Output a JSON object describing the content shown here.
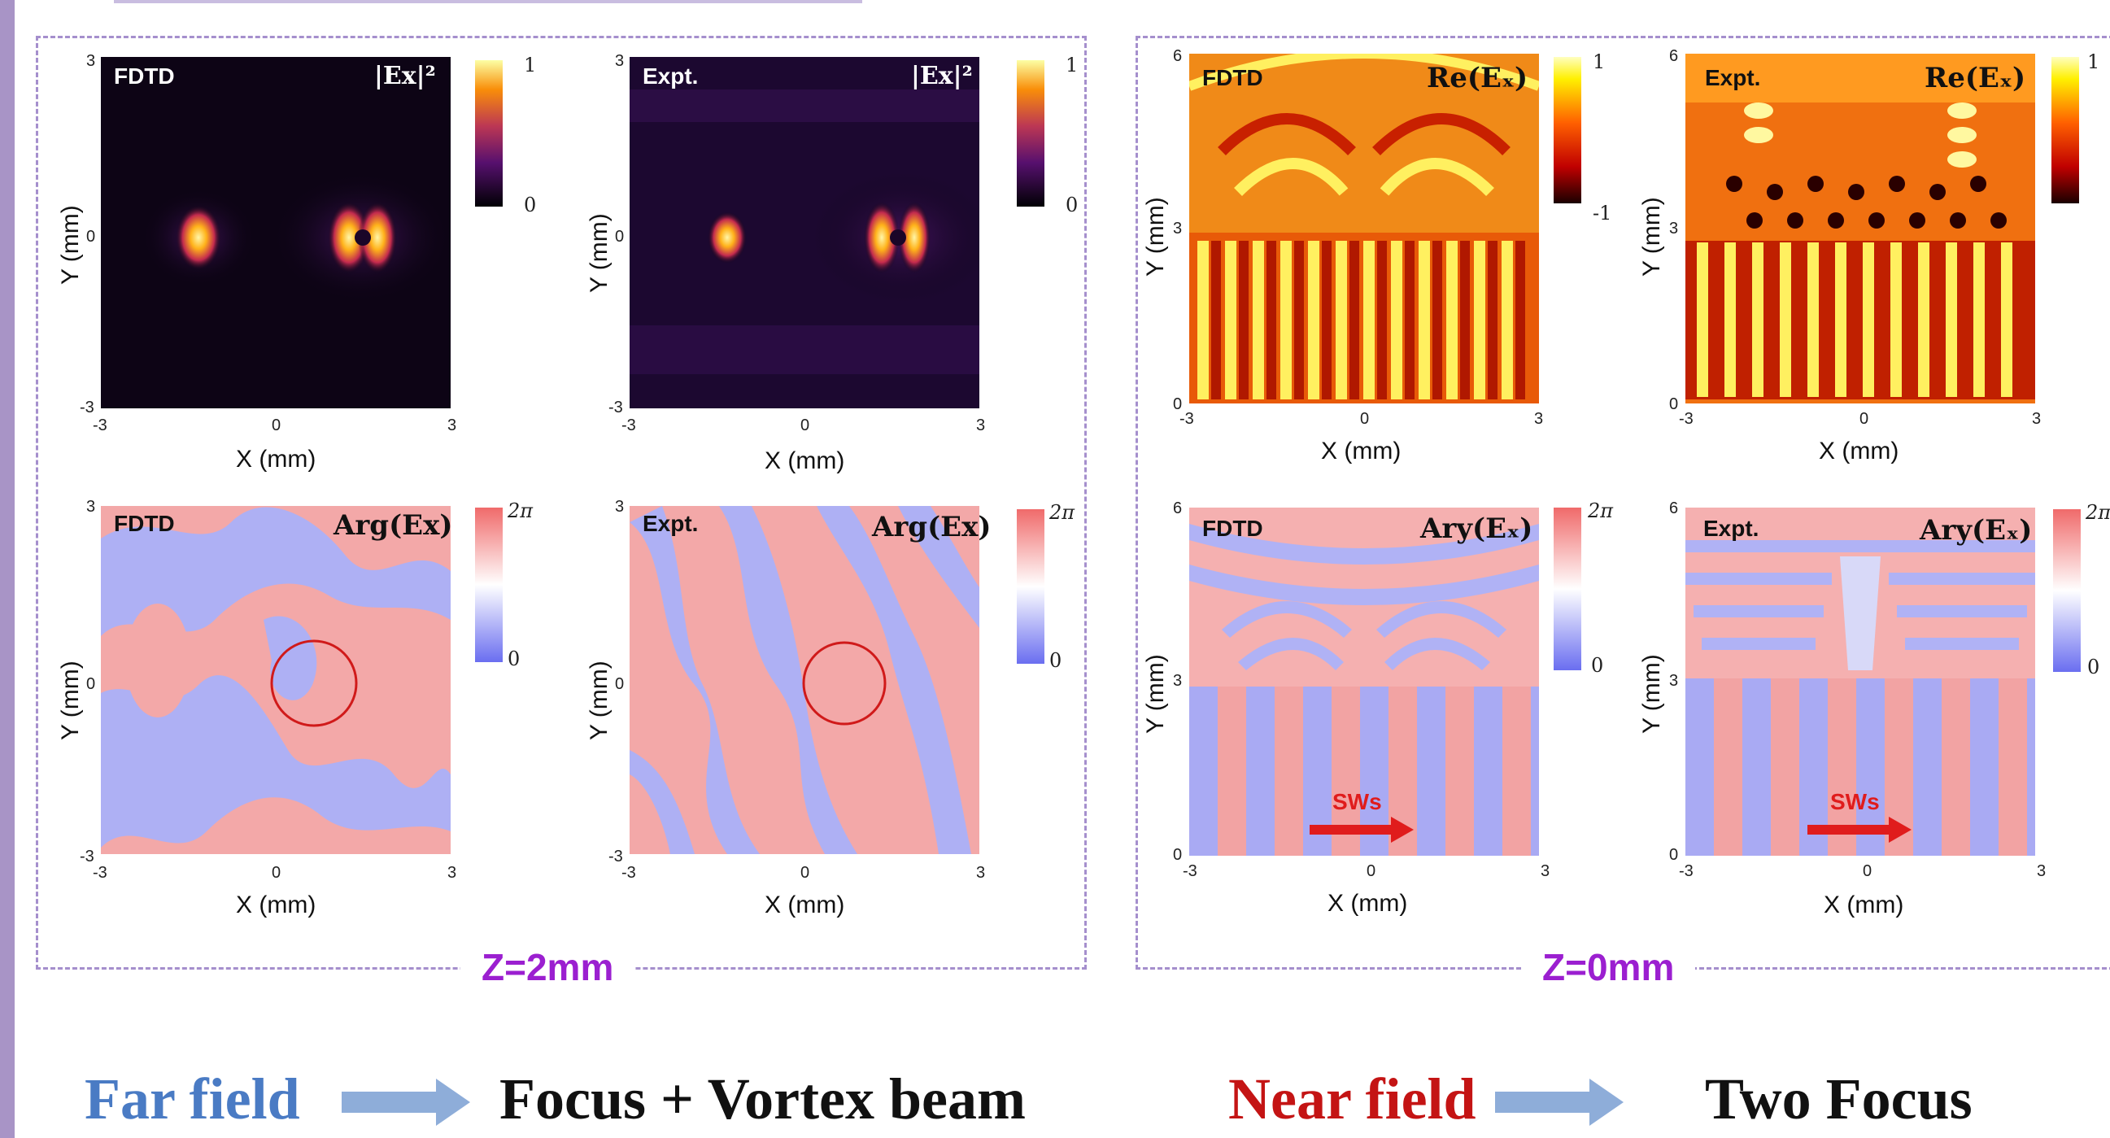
{
  "colors": {
    "far_field": "#4a7bc4",
    "near_field": "#c41414",
    "z_label": "#9b1fd0",
    "dash": "#a58fcd",
    "circle": "#d01a1a",
    "sws_arrow": "#e01c1c"
  },
  "panels": {
    "far_intensity_fdtd": {
      "source": "FDTD",
      "quantity": "|Ex|²",
      "cbar_max": "1",
      "cbar_min": "0",
      "ticks": [
        "-3",
        "0",
        "3"
      ],
      "xlabel": "X (mm)",
      "ylabel": "Y (mm)"
    },
    "far_intensity_expt": {
      "source": "Expt.",
      "quantity": "|Ex|²",
      "cbar_max": "1",
      "cbar_min": "0",
      "ticks": [
        "-3",
        "0",
        "3"
      ],
      "xlabel": "X (mm)",
      "ylabel": "Y (mm)"
    },
    "far_phase_fdtd": {
      "source": "FDTD",
      "quantity": "Arg(Ex)",
      "cbar_max": "2π",
      "cbar_min": "0",
      "ticks": [
        "-3",
        "0",
        "3"
      ],
      "xlabel": "X (mm)",
      "ylabel": "Y (mm)"
    },
    "far_phase_expt": {
      "source": "Expt.",
      "quantity": "Arg(Ex)",
      "cbar_max": "2π",
      "cbar_min": "0",
      "ticks": [
        "-3",
        "0",
        "3"
      ],
      "xlabel": "X (mm)",
      "ylabel": "Y (mm)"
    },
    "near_real_fdtd": {
      "source": "FDTD",
      "quantity": "Re(Eₓ)",
      "cbar_max": "1",
      "cbar_min": "-1",
      "yticks": [
        "0",
        "3",
        "6"
      ],
      "xticks": [
        "-3",
        "0",
        "3"
      ],
      "xlabel": "X (mm)",
      "ylabel": "Y (mm)"
    },
    "near_real_expt": {
      "source": "Expt.",
      "quantity": "Re(Eₓ)",
      "cbar_max": "1",
      "cbar_min": "",
      "yticks": [
        "0",
        "3",
        "6"
      ],
      "xticks": [
        "-3",
        "0",
        "3"
      ],
      "xlabel": "X (mm)",
      "ylabel": "Y (mm)"
    },
    "near_phase_fdtd": {
      "source": "FDTD",
      "quantity": "Ary(Eₓ)",
      "cbar_max": "2π",
      "cbar_min": "0",
      "yticks": [
        "0",
        "3",
        "6"
      ],
      "xticks": [
        "-3",
        "0",
        "3"
      ],
      "xlabel": "X (mm)",
      "ylabel": "Y (mm)",
      "sws": "SWs"
    },
    "near_phase_expt": {
      "source": "Expt.",
      "quantity": "Ary(Eₓ)",
      "cbar_max": "2π",
      "cbar_min": "0",
      "yticks": [
        "0",
        "3",
        "6"
      ],
      "xticks": [
        "-3",
        "0",
        "3"
      ],
      "xlabel": "X (mm)",
      "ylabel": "Y (mm)",
      "sws": "SWs"
    }
  },
  "z_labels": {
    "left": "Z=2mm",
    "right": "Z=0mm"
  },
  "bottom": {
    "far_label": "Far field",
    "far_result": "Focus + Vortex beam",
    "near_label": "Near field",
    "near_result": "Two Focus"
  }
}
